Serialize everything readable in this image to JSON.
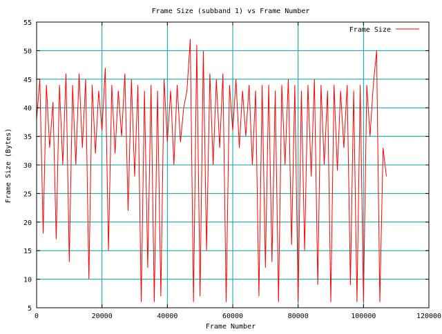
{
  "chart_data": {
    "type": "line",
    "title": "Frame Size (subband 1) vs Frame Number",
    "xlabel": "Frame Number",
    "ylabel": "Frame Size (Bytes)",
    "xlim": [
      0,
      120000
    ],
    "ylim": [
      5,
      55
    ],
    "xticks": [
      0,
      20000,
      40000,
      60000,
      80000,
      100000,
      120000
    ],
    "yticks": [
      5,
      10,
      15,
      20,
      25,
      30,
      35,
      40,
      45,
      50,
      55
    ],
    "grid": true,
    "legend_position": "top-right",
    "series": [
      {
        "name": "Frame Size",
        "color": "#ff0000",
        "x": [
          0,
          1000,
          2000,
          3000,
          4000,
          5000,
          6000,
          7000,
          8000,
          9000,
          10000,
          11000,
          12000,
          13000,
          14000,
          15000,
          16000,
          17000,
          18000,
          19000,
          20000,
          21000,
          22000,
          23000,
          24000,
          25000,
          26000,
          27000,
          28000,
          29000,
          30000,
          31000,
          32000,
          33000,
          34000,
          35000,
          36000,
          37000,
          38000,
          39000,
          40000,
          41000,
          42000,
          43000,
          44000,
          45000,
          46000,
          47000,
          48000,
          49000,
          50000,
          51000,
          52000,
          53000,
          54000,
          55000,
          56000,
          57000,
          58000,
          59000,
          60000,
          61000,
          62000,
          63000,
          64000,
          65000,
          66000,
          67000,
          68000,
          69000,
          70000,
          71000,
          72000,
          73000,
          74000,
          75000,
          76000,
          77000,
          78000,
          79000,
          80000,
          81000,
          82000,
          83000,
          84000,
          85000,
          86000,
          87000,
          88000,
          89000,
          90000,
          91000,
          92000,
          93000,
          94000,
          95000,
          96000,
          97000,
          98000,
          99000,
          100000,
          101000,
          102000,
          103000,
          104000,
          105000,
          106000,
          107000
        ],
        "values": [
          38,
          45,
          18,
          44,
          33,
          41,
          17,
          44,
          30,
          46,
          13,
          44,
          30,
          46,
          33,
          45,
          10,
          44,
          32,
          43,
          36,
          47,
          15,
          44,
          32,
          43,
          35,
          46,
          22,
          45,
          28,
          44,
          6,
          43,
          12,
          44,
          6,
          43,
          7,
          45,
          34,
          43,
          30,
          44,
          34,
          40,
          43,
          52,
          6,
          51,
          7,
          50,
          15,
          46,
          30,
          45,
          33,
          46,
          6,
          44,
          36,
          45,
          33,
          43,
          35,
          44,
          30,
          43,
          7,
          44,
          12,
          44,
          13,
          43,
          6,
          44,
          30,
          45,
          16,
          44,
          6,
          43,
          15,
          44,
          28,
          45,
          9,
          44,
          30,
          43,
          6,
          44,
          29,
          43,
          33,
          44,
          9,
          43,
          6,
          44,
          6,
          44,
          35,
          44,
          50,
          6,
          33,
          28
        ]
      }
    ]
  }
}
